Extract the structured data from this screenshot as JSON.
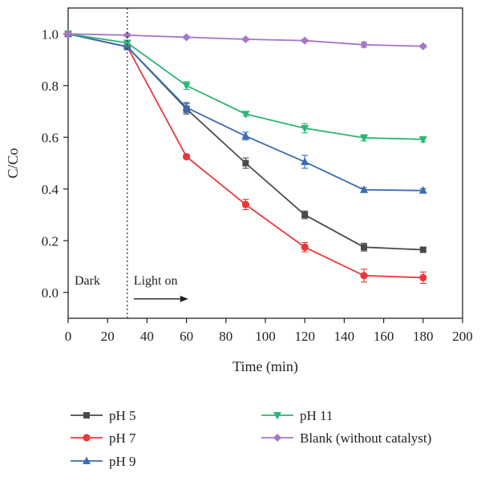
{
  "chart_data": {
    "type": "line",
    "xlabel": "Time (min)",
    "ylabel": "C/Co",
    "xlim": [
      0,
      200
    ],
    "ylim": [
      -0.1,
      1.1
    ],
    "xticks": [
      0,
      20,
      40,
      60,
      80,
      100,
      120,
      140,
      160,
      180,
      200
    ],
    "yticks": [
      0.0,
      0.2,
      0.4,
      0.6,
      0.8,
      1.0
    ],
    "ytick_labels": [
      "0.0",
      "0.2",
      "0.4",
      "0.6",
      "0.8",
      "1.0"
    ],
    "grid": false,
    "legend_position": "below",
    "x": [
      0,
      30,
      60,
      90,
      120,
      150,
      180
    ],
    "series": [
      {
        "name": "pH 5",
        "color": "#4a4a4a",
        "marker": "square",
        "values": [
          1.0,
          0.95,
          0.71,
          0.5,
          0.3,
          0.175,
          0.165
        ],
        "errors": [
          0,
          0.01,
          0.02,
          0.02,
          0.015,
          0.015,
          0.01
        ]
      },
      {
        "name": "pH 7",
        "color": "#e8383a",
        "marker": "circle",
        "values": [
          1.0,
          0.95,
          0.525,
          0.34,
          0.175,
          0.065,
          0.057
        ],
        "errors": [
          0,
          0.01,
          0.008,
          0.02,
          0.018,
          0.025,
          0.022
        ]
      },
      {
        "name": "pH 9",
        "color": "#3a6bb3",
        "marker": "triangle-up",
        "values": [
          1.0,
          0.95,
          0.715,
          0.605,
          0.505,
          0.397,
          0.394
        ],
        "errors": [
          0,
          0.01,
          0.02,
          0.015,
          0.025,
          0.008,
          0.008
        ]
      },
      {
        "name": "pH 11",
        "color": "#2bb673",
        "marker": "triangle-down",
        "values": [
          1.0,
          0.965,
          0.8,
          0.69,
          0.635,
          0.598,
          0.592
        ],
        "errors": [
          0,
          0.01,
          0.015,
          0.008,
          0.018,
          0.012,
          0.01
        ]
      },
      {
        "name": "Blank (without catalyst)",
        "color": "#a675c9",
        "marker": "diamond",
        "values": [
          1.0,
          0.995,
          0.987,
          0.979,
          0.974,
          0.958,
          0.952
        ],
        "errors": [
          0,
          0.005,
          0.005,
          0.005,
          0.005,
          0.01,
          0.006
        ]
      }
    ],
    "annotations": {
      "divider_x": 30,
      "dark_label": "Dark",
      "light_label": "Light on"
    }
  }
}
